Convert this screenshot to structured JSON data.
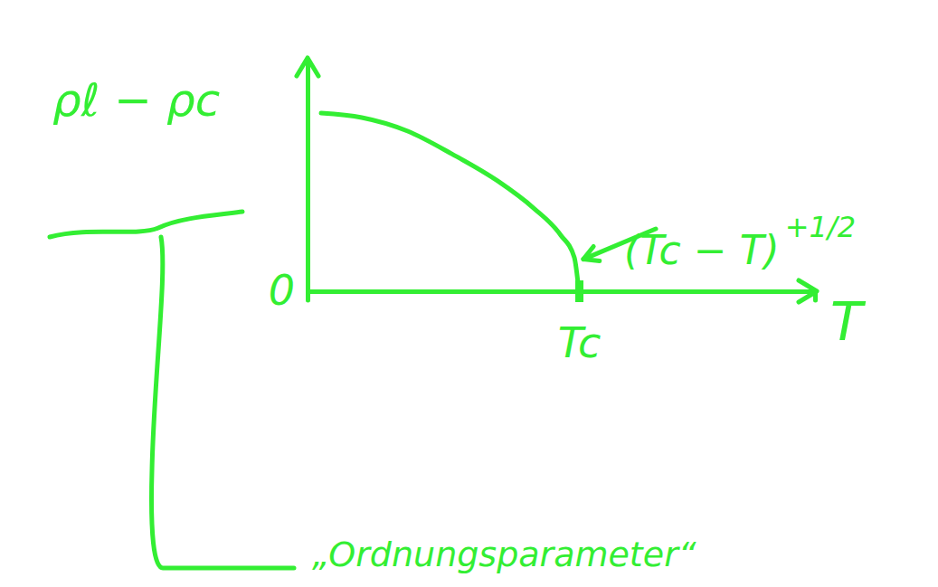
{
  "chart_data": {
    "type": "line",
    "x": [
      0.05,
      0.2,
      0.367,
      0.533,
      0.7,
      0.833,
      0.933,
      0.983,
      1.0
    ],
    "values": [
      1.0,
      0.975,
      0.9,
      0.77,
      0.62,
      0.467,
      0.315,
      0.19,
      0.0
    ],
    "color": "#33ee33",
    "xlim": [
      0,
      1.87
    ],
    "ylim": [
      0,
      1.3
    ],
    "xticks": [
      {
        "value": 1,
        "label": "Tc"
      }
    ],
    "yticks": [
      0
    ],
    "x_label": "T",
    "y_label": "ρℓ − ρc",
    "annotations": [
      {
        "text": "(Tc − T)",
        "exponent": "+1/2"
      }
    ],
    "caption": "„Ordnungsparameter“",
    "grid": false
  }
}
